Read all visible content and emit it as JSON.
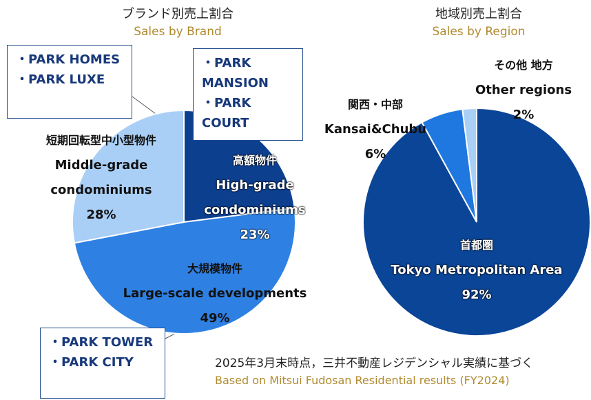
{
  "chart_data": [
    {
      "type": "pie",
      "title": "ブランド別売上割合",
      "subtitle": "Sales by Brand",
      "categories_ja": [
        "高額物件",
        "大規模物件",
        "短期回転型中小型物件"
      ],
      "categories": [
        "High-grade condominiums",
        "Large-scale developments",
        "Middle-grade condominiums"
      ],
      "values": [
        23,
        49,
        28
      ],
      "value_labels": [
        "23%",
        "49%",
        "28%"
      ],
      "colors": [
        "#0d3f8f",
        "#2f80e3",
        "#a9cff6"
      ],
      "callouts": [
        [
          "・PARK MANSION",
          "・PARK COURT"
        ],
        [
          "・PARK TOWER",
          "・PARK CITY"
        ],
        [
          "・PARK HOMES",
          "・PARK LUXE"
        ]
      ]
    },
    {
      "type": "pie",
      "title": "地域別売上割合",
      "subtitle": "Sales by Region",
      "categories_ja": [
        "首都圏",
        "関西・中部",
        "その他 地方"
      ],
      "categories": [
        "Tokyo Metropolitan Area",
        "Kansai&Chubu",
        "Other regions"
      ],
      "values": [
        92,
        6,
        2
      ],
      "value_labels": [
        "92%",
        "6%",
        "2%"
      ],
      "colors": [
        "#0b4597",
        "#1f78e0",
        "#a9cff6"
      ]
    }
  ],
  "footnote": {
    "ja": "2025年3月末時点，三井不動産レジデンシャル実績に基づく",
    "en": "Based on Mitsui Fudosan Residential results (FY2024)"
  }
}
